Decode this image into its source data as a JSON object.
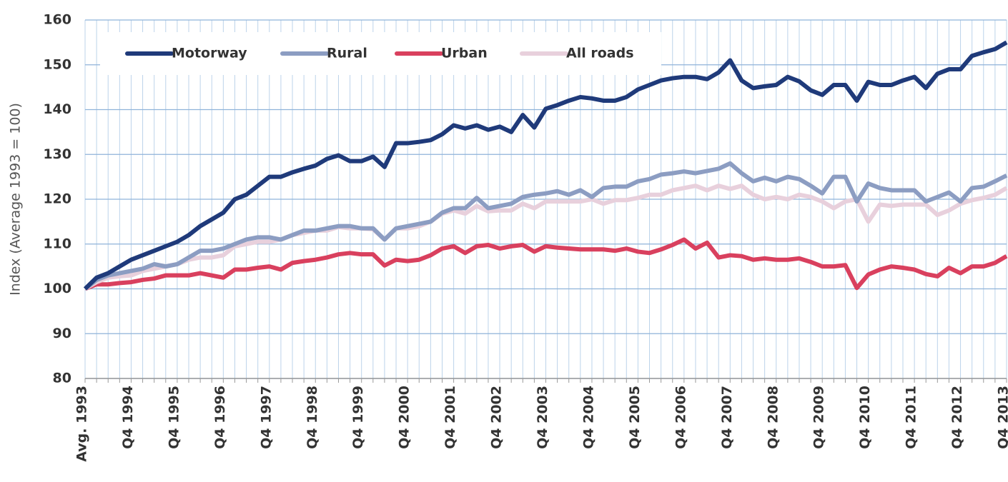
{
  "chart_data": {
    "type": "line",
    "y_axis_label": "Index (Average 1993 = 100)",
    "categories": [
      "Avg. 1993",
      null,
      null,
      null,
      "Q4 1994",
      null,
      null,
      null,
      "Q4 1995",
      null,
      null,
      null,
      "Q4 1996",
      null,
      null,
      null,
      "Q4 1997",
      null,
      null,
      null,
      "Q4 1998",
      null,
      null,
      null,
      "Q4 1999",
      null,
      null,
      null,
      "Q4 2000",
      null,
      null,
      null,
      "Q4 2001",
      null,
      null,
      null,
      "Q4 2002",
      null,
      null,
      null,
      "Q4 2003",
      null,
      null,
      null,
      "Q4 2004",
      null,
      null,
      null,
      "Q4 2005",
      null,
      null,
      null,
      "Q4 2006",
      null,
      null,
      null,
      "Q4 2007",
      null,
      null,
      null,
      "Q4 2008",
      null,
      null,
      null,
      "Q4 2009",
      null,
      null,
      null,
      "Q4 2010",
      null,
      null,
      null,
      "Q4 2011",
      null,
      null,
      null,
      "Q4 2012",
      null,
      null,
      null,
      "Q4 2013"
    ],
    "series": [
      {
        "name": "Motorway",
        "color": "#1f3a7a",
        "values": [
          100,
          102.5,
          103.5,
          105,
          106.5,
          107.5,
          108.5,
          109.5,
          110.5,
          112,
          114,
          115.5,
          117,
          120,
          121,
          123,
          125,
          125,
          126,
          126.8,
          127.5,
          129,
          129.8,
          128.5,
          128.5,
          129.5,
          127.2,
          132.5,
          132.5,
          132.8,
          133.2,
          134.5,
          136.5,
          135.8,
          136.5,
          135.5,
          136.2,
          135,
          138.8,
          136,
          140.2,
          141,
          142,
          142.8,
          142.5,
          142,
          142,
          142.8,
          144.5,
          145.5,
          146.5,
          147,
          147.3,
          147.3,
          146.8,
          148.3,
          151,
          146.5,
          144.8,
          145.2,
          145.5,
          147.3,
          146.3,
          144.3,
          143.3,
          145.5,
          145.5,
          142,
          146.2,
          145.5,
          145.5,
          146.5,
          147.3,
          144.8,
          148,
          149,
          149,
          152,
          152.8,
          153.5,
          155
        ]
      },
      {
        "name": "Rural",
        "color": "#8c9dc2",
        "values": [
          100,
          102,
          103,
          103.5,
          104,
          104.5,
          105.5,
          105,
          105.5,
          107,
          108.5,
          108.5,
          109,
          110,
          111,
          111.5,
          111.5,
          111,
          112,
          113,
          113,
          113.5,
          114,
          114,
          113.5,
          113.5,
          111,
          113.5,
          114,
          114.5,
          115,
          117,
          118,
          118,
          120.3,
          118,
          118.5,
          119,
          120.5,
          121,
          121.3,
          121.8,
          121,
          122,
          120.5,
          122.5,
          122.8,
          122.8,
          124,
          124.5,
          125.5,
          125.8,
          126.2,
          125.8,
          126.3,
          126.8,
          128,
          125.8,
          124,
          124.8,
          124,
          125,
          124.5,
          123,
          121.3,
          125,
          125,
          119.5,
          123.5,
          122.5,
          122,
          122,
          122,
          119.5,
          120.5,
          121.5,
          119.5,
          122.5,
          122.8,
          124,
          125.3
        ]
      },
      {
        "name": "Urban",
        "color": "#d9405e",
        "values": [
          100,
          101,
          101,
          101.3,
          101.5,
          102,
          102.3,
          103,
          103,
          103,
          103.5,
          103,
          102.5,
          104.3,
          104.3,
          104.7,
          105,
          104.3,
          105.8,
          106.2,
          106.5,
          107,
          107.7,
          108,
          107.7,
          107.7,
          105.2,
          106.5,
          106.2,
          106.5,
          107.5,
          109,
          109.5,
          108,
          109.5,
          109.8,
          109,
          109.5,
          109.8,
          108.3,
          109.5,
          109.2,
          109,
          108.8,
          108.8,
          108.8,
          108.5,
          109,
          108.3,
          108,
          108.8,
          109.8,
          111,
          109,
          110.3,
          107,
          107.5,
          107.3,
          106.5,
          106.8,
          106.5,
          106.5,
          106.8,
          106,
          105,
          105,
          105.3,
          100.2,
          103.2,
          104.3,
          105,
          104.7,
          104.3,
          103.3,
          102.8,
          104.7,
          103.5,
          105,
          105,
          105.8,
          107.3
        ]
      },
      {
        "name": "All roads",
        "color": "#e8d0dc",
        "values": [
          100,
          101.5,
          102.5,
          102.8,
          103,
          104,
          104.5,
          105,
          105.5,
          106.5,
          107,
          107,
          107.5,
          109.5,
          110,
          110.5,
          110.5,
          111,
          112,
          112.5,
          113,
          113,
          113.8,
          113.5,
          113.5,
          113.3,
          111,
          113.5,
          113.5,
          114,
          115,
          116.8,
          117.5,
          116.8,
          118.5,
          117.3,
          117.5,
          117.5,
          119,
          118,
          119.5,
          119.5,
          119.5,
          119.5,
          120,
          119,
          119.8,
          119.8,
          120.3,
          121,
          121,
          122,
          122.5,
          123,
          122,
          123,
          122.3,
          123,
          121,
          120,
          120.5,
          120,
          121,
          120.5,
          119.5,
          118,
          119.5,
          120,
          115,
          118.8,
          118.5,
          118.8,
          118.8,
          118.8,
          116.5,
          117.5,
          119,
          119.8,
          120.3,
          121,
          122.5
        ]
      }
    ],
    "ylim": [
      80,
      160
    ],
    "yticks": [
      80,
      90,
      100,
      110,
      120,
      130,
      140,
      150,
      160
    ],
    "grid": true,
    "legend": "top"
  }
}
